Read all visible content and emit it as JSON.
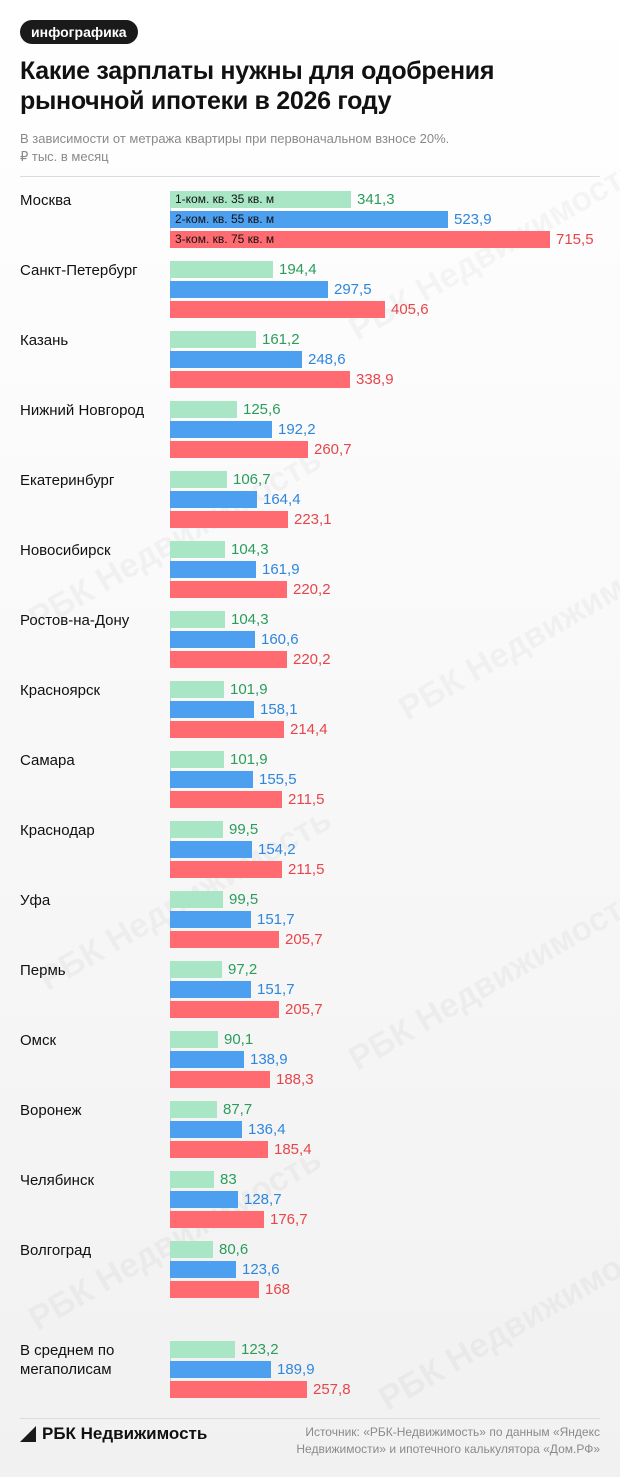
{
  "badge": "инфографика",
  "footer": {
    "brand": "РБК Недвижимость",
    "source": "Источник: «РБК-Недвижимость» по данным «Яндекс Недвижимости» и ипотечного калькулятора «Дом.РФ»"
  },
  "watermark": "РБК Недвижимость",
  "colors": {
    "one_room": "#a8e6c6",
    "two_room": "#4d9ff0",
    "three_room": "#ff6b70",
    "one_room_text": "#2a9d5c",
    "two_room_text": "#2e86de",
    "three_room_text": "#e8454a"
  },
  "chart_data": {
    "type": "bar",
    "orientation": "horizontal",
    "title": "Какие зарплаты нужны для одобрения рыночной ипотеки в 2026 году",
    "subtitle": "В зависимости от метража квартиры при первоначальном взносе 20%.",
    "unit": "₽ тыс. в месяц",
    "categories": [
      "Москва",
      "Санкт-Петербург",
      "Казань",
      "Нижний Новгород",
      "Екатеринбург",
      "Новосибирск",
      "Ростов-на-Дону",
      "Красноярск",
      "Самара",
      "Краснодар",
      "Уфа",
      "Пермь",
      "Омск",
      "Воронеж",
      "Челябинск",
      "Волгоград",
      "В среднем по мегаполисам"
    ],
    "series": [
      {
        "name": "1-ком. кв. 35 кв. м",
        "values": [
          341.3,
          194.4,
          161.2,
          125.6,
          106.7,
          104.3,
          104.3,
          101.9,
          101.9,
          99.5,
          99.5,
          97.2,
          90.1,
          87.7,
          83,
          80.6,
          123.2
        ],
        "labels": [
          "341,3",
          "194,4",
          "161,2",
          "125,6",
          "106,7",
          "104,3",
          "104,3",
          "101,9",
          "101,9",
          "99,5",
          "99,5",
          "97,2",
          "90,1",
          "87,7",
          "83",
          "80,6",
          "123,2"
        ]
      },
      {
        "name": "2-ком. кв. 55 кв. м",
        "values": [
          523.9,
          297.5,
          248.6,
          192.2,
          164.4,
          161.9,
          160.6,
          158.1,
          155.5,
          154.2,
          151.7,
          151.7,
          138.9,
          136.4,
          128.7,
          123.6,
          189.9
        ],
        "labels": [
          "523,9",
          "297,5",
          "248,6",
          "192,2",
          "164,4",
          "161,9",
          "160,6",
          "158,1",
          "155,5",
          "154,2",
          "151,7",
          "151,7",
          "138,9",
          "136,4",
          "128,7",
          "123,6",
          "189,9"
        ]
      },
      {
        "name": "3-ком. кв. 75 кв. м",
        "values": [
          715.5,
          405.6,
          338.9,
          260.7,
          223.1,
          220.2,
          220.2,
          214.4,
          211.5,
          211.5,
          205.7,
          205.7,
          188.3,
          185.4,
          176.7,
          168,
          257.8
        ],
        "labels": [
          "715,5",
          "405,6",
          "338,9",
          "260,7",
          "223,1",
          "220,2",
          "220,2",
          "214,4",
          "211,5",
          "211,5",
          "205,7",
          "205,7",
          "188,3",
          "185,4",
          "176,7",
          "168",
          "257,8"
        ]
      }
    ],
    "xlim": [
      0,
      715.5
    ],
    "legend": "inside-first-group-bars",
    "grid": false
  }
}
